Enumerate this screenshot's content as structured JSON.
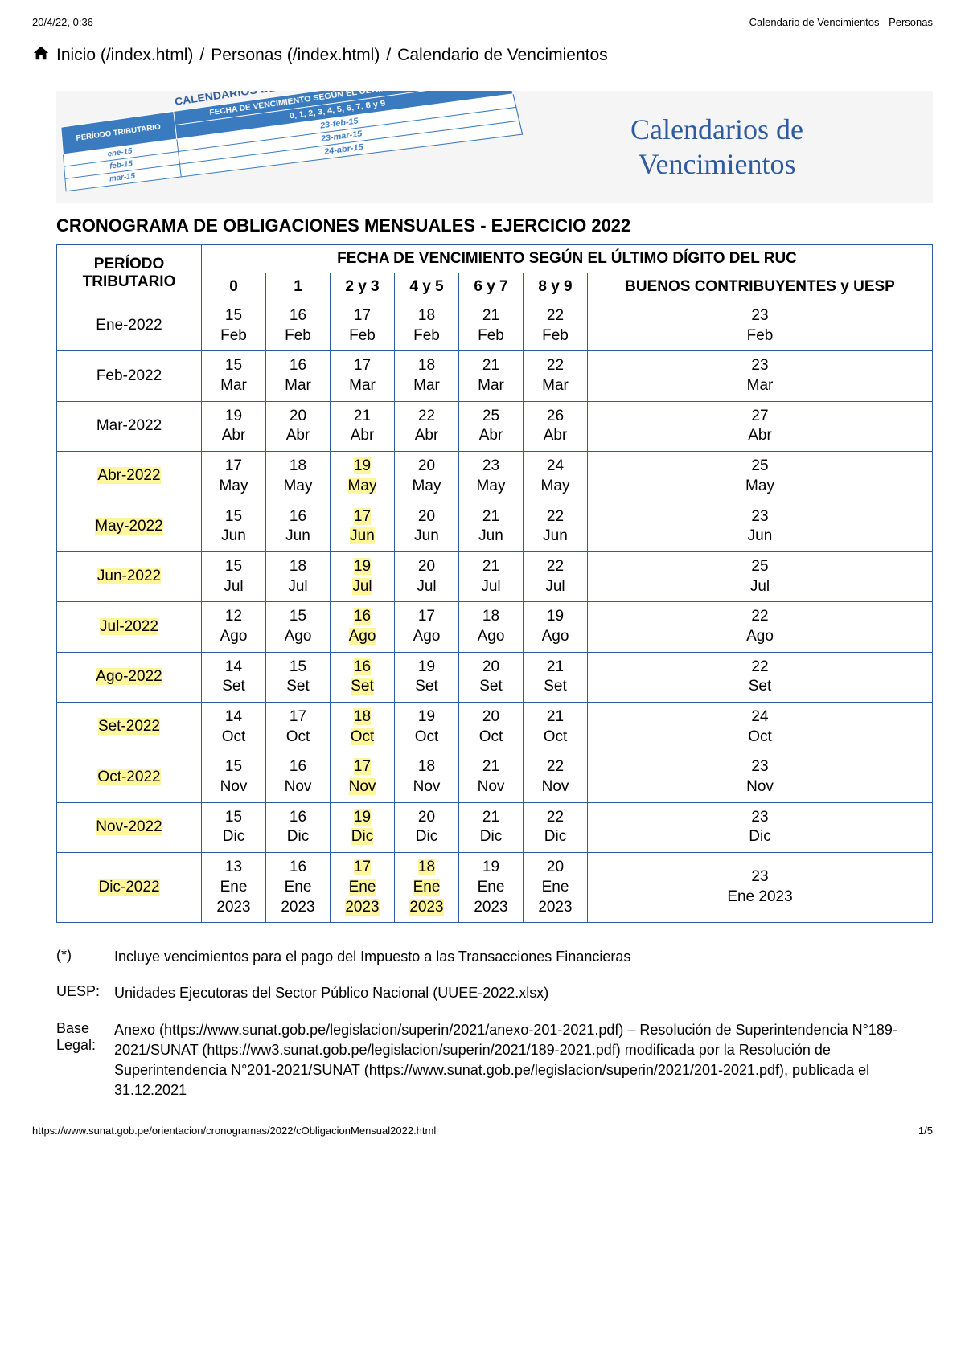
{
  "header": {
    "timestamp": "20/4/22, 0:36",
    "doc_title": "Calendario de Vencimientos - Personas"
  },
  "breadcrumb": {
    "home_label": "Inicio (/index.html)",
    "personas_label": "Personas (/index.html)",
    "current_label": "Calendario de Vencimientos",
    "separator": "/"
  },
  "banner": {
    "mini_title": "CALENDARIOS DE VENCIMIENTOS",
    "mini_th1": "PERÍODO TRIBUTARIO",
    "mini_th2": "FECHA DE VENCIMIENTO SEGÚN EL ÚLTIMO DÍGITO DEL RUC",
    "mini_th3": "0, 1, 2, 3, 4, 5, 6, 7, 8 y 9",
    "mini_rows": [
      [
        "ene-15",
        "23-feb-15"
      ],
      [
        "feb-15",
        "23-mar-15"
      ],
      [
        "mar-15",
        "24-abr-15"
      ]
    ],
    "right_line1": "Calendarios de",
    "right_line2": "Vencimientos"
  },
  "main_title": "CRONOGRAMA DE OBLIGACIONES MENSUALES - EJERCICIO 2022",
  "table": {
    "header_period": "PERÍODO TRIBUTARIO",
    "header_super": "FECHA DE VENCIMIENTO SEGÚN EL ÚLTIMO DÍGITO DEL RUC",
    "cols": [
      "0",
      "1",
      "2 y 3",
      "4 y 5",
      "6 y 7",
      "8 y 9",
      "BUENOS CONTRIBUYENTES y UESP"
    ],
    "rows": [
      {
        "period": "Ene-2022",
        "period_hl": false,
        "cells": [
          {
            "t": "15 Feb",
            "hl": false
          },
          {
            "t": "16 Feb",
            "hl": false
          },
          {
            "t": "17 Feb",
            "hl": false
          },
          {
            "t": "18 Feb",
            "hl": false
          },
          {
            "t": "21 Feb",
            "hl": false
          },
          {
            "t": "22 Feb",
            "hl": false
          },
          {
            "t": "23 Feb",
            "hl": false
          }
        ]
      },
      {
        "period": "Feb-2022",
        "period_hl": false,
        "cells": [
          {
            "t": "15 Mar",
            "hl": false
          },
          {
            "t": "16 Mar",
            "hl": false
          },
          {
            "t": "17 Mar",
            "hl": false
          },
          {
            "t": "18 Mar",
            "hl": false
          },
          {
            "t": "21 Mar",
            "hl": false
          },
          {
            "t": "22 Mar",
            "hl": false
          },
          {
            "t": "23 Mar",
            "hl": false
          }
        ]
      },
      {
        "period": "Mar-2022",
        "period_hl": false,
        "cells": [
          {
            "t": "19 Abr",
            "hl": false
          },
          {
            "t": "20 Abr",
            "hl": false
          },
          {
            "t": "21 Abr",
            "hl": false
          },
          {
            "t": "22 Abr",
            "hl": false
          },
          {
            "t": "25 Abr",
            "hl": false
          },
          {
            "t": "26 Abr",
            "hl": false
          },
          {
            "t": "27 Abr",
            "hl": false
          }
        ]
      },
      {
        "period": "Abr-2022",
        "period_hl": true,
        "cells": [
          {
            "t": "17 May",
            "hl": false
          },
          {
            "t": "18 May",
            "hl": false
          },
          {
            "t": "19 May",
            "hl": true
          },
          {
            "t": "20 May",
            "hl": false
          },
          {
            "t": "23 May",
            "hl": false
          },
          {
            "t": "24 May",
            "hl": false
          },
          {
            "t": "25 May",
            "hl": false
          }
        ]
      },
      {
        "period": "May-2022",
        "period_hl": true,
        "cells": [
          {
            "t": "15 Jun",
            "hl": false
          },
          {
            "t": "16 Jun",
            "hl": false
          },
          {
            "t": "17 Jun",
            "hl": true
          },
          {
            "t": "20 Jun",
            "hl": false
          },
          {
            "t": "21 Jun",
            "hl": false
          },
          {
            "t": "22 Jun",
            "hl": false
          },
          {
            "t": "23 Jun",
            "hl": false
          }
        ]
      },
      {
        "period": "Jun-2022",
        "period_hl": true,
        "cells": [
          {
            "t": "15 Jul",
            "hl": false
          },
          {
            "t": "18 Jul",
            "hl": false
          },
          {
            "t": "19 Jul",
            "hl": true
          },
          {
            "t": "20 Jul",
            "hl": false
          },
          {
            "t": "21 Jul",
            "hl": false
          },
          {
            "t": "22 Jul",
            "hl": false
          },
          {
            "t": "25 Jul",
            "hl": false
          }
        ]
      },
      {
        "period": "Jul-2022",
        "period_hl": true,
        "cells": [
          {
            "t": "12 Ago",
            "hl": false
          },
          {
            "t": "15 Ago",
            "hl": false
          },
          {
            "t": "16 Ago",
            "hl": true
          },
          {
            "t": "17 Ago",
            "hl": false
          },
          {
            "t": "18 Ago",
            "hl": false
          },
          {
            "t": "19 Ago",
            "hl": false
          },
          {
            "t": "22 Ago",
            "hl": false
          }
        ]
      },
      {
        "period": "Ago-2022",
        "period_hl": true,
        "cells": [
          {
            "t": "14 Set",
            "hl": false
          },
          {
            "t": "15 Set",
            "hl": false
          },
          {
            "t": "16 Set",
            "hl": true
          },
          {
            "t": "19 Set",
            "hl": false
          },
          {
            "t": "20 Set",
            "hl": false
          },
          {
            "t": "21 Set",
            "hl": false
          },
          {
            "t": "22 Set",
            "hl": false
          }
        ]
      },
      {
        "period": "Set-2022",
        "period_hl": true,
        "cells": [
          {
            "t": "14 Oct",
            "hl": false
          },
          {
            "t": "17 Oct",
            "hl": false
          },
          {
            "t": "18 Oct",
            "hl": true
          },
          {
            "t": "19 Oct",
            "hl": false
          },
          {
            "t": "20 Oct",
            "hl": false
          },
          {
            "t": "21 Oct",
            "hl": false
          },
          {
            "t": "24 Oct",
            "hl": false
          }
        ]
      },
      {
        "period": "Oct-2022",
        "period_hl": true,
        "cells": [
          {
            "t": "15 Nov",
            "hl": false
          },
          {
            "t": "16 Nov",
            "hl": false
          },
          {
            "t": "17 Nov",
            "hl": true
          },
          {
            "t": "18 Nov",
            "hl": false
          },
          {
            "t": "21 Nov",
            "hl": false
          },
          {
            "t": "22 Nov",
            "hl": false
          },
          {
            "t": "23 Nov",
            "hl": false
          }
        ]
      },
      {
        "period": "Nov-2022",
        "period_hl": true,
        "cells": [
          {
            "t": "15 Dic",
            "hl": false
          },
          {
            "t": "16 Dic",
            "hl": false
          },
          {
            "t": "19 Dic",
            "hl": true
          },
          {
            "t": "20 Dic",
            "hl": false
          },
          {
            "t": "21 Dic",
            "hl": false
          },
          {
            "t": "22 Dic",
            "hl": false
          },
          {
            "t": "23 Dic",
            "hl": false
          }
        ]
      },
      {
        "period": "Dic-2022",
        "period_hl": true,
        "cells": [
          {
            "t": "13 Ene 2023",
            "hl": false
          },
          {
            "t": "16 Ene 2023",
            "hl": false
          },
          {
            "t": "17 Ene 2023",
            "hl": true
          },
          {
            "t": "18 Ene 2023",
            "hl": true
          },
          {
            "t": "19 Ene 2023",
            "hl": false
          },
          {
            "t": "20 Ene 2023",
            "hl": false
          },
          {
            "t": "23 Ene 2023",
            "hl": false
          }
        ]
      }
    ]
  },
  "footnotes": {
    "star_label": "(*)",
    "star_text": "Incluye vencimientos para el pago del Impuesto a las Transacciones Financieras",
    "uesp_label": "UESP:",
    "uesp_text": "Unidades Ejecutoras del Sector Público Nacional (UUEE-2022.xlsx)",
    "base_label": "Base Legal:",
    "base_text": "Anexo (https://www.sunat.gob.pe/legislacion/superin/2021/anexo-201-2021.pdf) – Resolución de Superintendencia N°189-2021/SUNAT (https://ww3.sunat.gob.pe/legislacion/superin/2021/189-2021.pdf) modificada por la Resolución de Superintendencia N°201-2021/SUNAT (https://www.sunat.gob.pe/legislacion/superin/2021/201-2021.pdf), publicada el 31.12.2021"
  },
  "footer": {
    "url": "https://www.sunat.gob.pe/orientacion/cronogramas/2022/cObligacionMensual2022.html",
    "page": "1/5"
  },
  "style": {
    "border_color": "#2e5c9e",
    "highlight_color": "#fff59d",
    "banner_blue": "#3a7bbf"
  }
}
